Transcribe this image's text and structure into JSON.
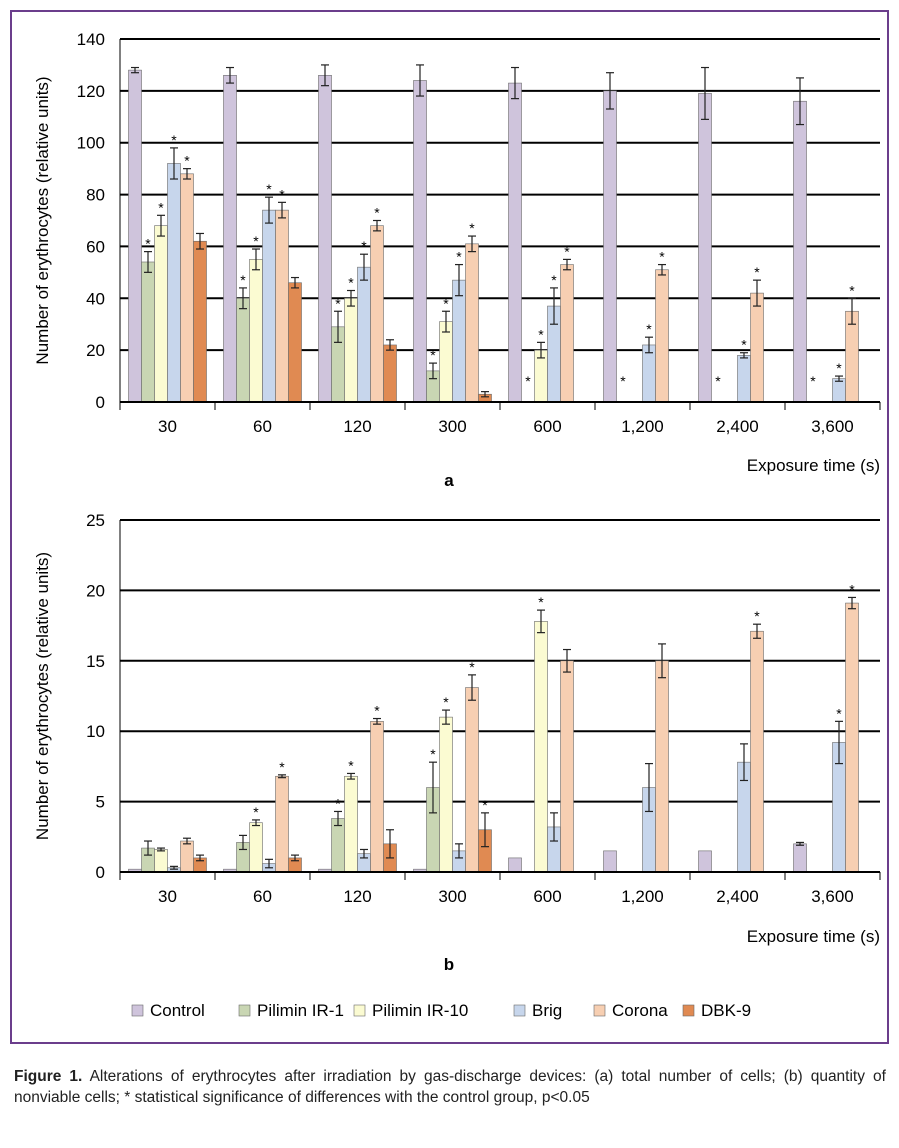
{
  "colors": {
    "Control": "#cfc4dc",
    "Pilimin IR-1": "#c9d6b3",
    "Pilimin IR-10": "#fbfbd2",
    "Brig": "#c7d6ec",
    "Corona": "#f7cfb2",
    "DBK-9": "#e08a52",
    "frame": "#6b3d8c"
  },
  "legend": [
    "Control",
    "Pilimin IR-1",
    "Pilimin IR-10",
    "Brig",
    "Corona",
    "DBK-9"
  ],
  "caption": {
    "label": "Figure 1.",
    "text": " Alterations of erythrocytes after irradiation by gas-discharge devices: (a) total number of cells; (b) quantity of nonviable cells; * statistical significance of differences with the control group, p<0.05"
  },
  "chart_data": [
    {
      "type": "bar",
      "panel_label": "a",
      "ylabel": "Number of erythrocytes (relative units)",
      "xlabel": "Exposure time (s)",
      "ylim": [
        0,
        140
      ],
      "yticks": [
        0,
        20,
        40,
        60,
        80,
        100,
        120,
        140
      ],
      "grid": true,
      "categories": [
        "30",
        "60",
        "120",
        "300",
        "600",
        "1,200",
        "2,400",
        "3,600"
      ],
      "series": [
        {
          "name": "Control",
          "values": [
            128,
            126,
            126,
            124,
            123,
            120,
            119,
            116
          ],
          "errors": [
            1,
            3,
            4,
            6,
            6,
            7,
            10,
            9
          ],
          "stars": [
            false,
            false,
            false,
            false,
            false,
            false,
            false,
            false
          ]
        },
        {
          "name": "Pilimin IR-1",
          "values": [
            54,
            40,
            29,
            12,
            0,
            0,
            0,
            0
          ],
          "errors": [
            4,
            4,
            6,
            3,
            0,
            0,
            0,
            0
          ],
          "stars": [
            true,
            true,
            true,
            true,
            true,
            true,
            true,
            true
          ]
        },
        {
          "name": "Pilimin IR-10",
          "values": [
            68,
            55,
            40,
            31,
            20,
            0,
            0,
            0
          ],
          "errors": [
            4,
            4,
            3,
            4,
            3,
            0,
            0,
            0
          ],
          "stars": [
            true,
            true,
            true,
            true,
            true,
            false,
            false,
            false
          ]
        },
        {
          "name": "Brig",
          "values": [
            92,
            74,
            52,
            47,
            37,
            22,
            18,
            9
          ],
          "errors": [
            6,
            5,
            5,
            6,
            7,
            3,
            1,
            1
          ],
          "stars": [
            true,
            true,
            true,
            true,
            true,
            true,
            true,
            true
          ]
        },
        {
          "name": "Corona",
          "values": [
            88,
            74,
            68,
            61,
            53,
            51,
            42,
            35
          ],
          "errors": [
            2,
            3,
            2,
            3,
            2,
            2,
            5,
            5
          ],
          "stars": [
            true,
            true,
            true,
            true,
            true,
            true,
            true,
            true
          ]
        },
        {
          "name": "DBK-9",
          "values": [
            62,
            46,
            22,
            3,
            0,
            0,
            0,
            0
          ],
          "errors": [
            3,
            2,
            2,
            1,
            0,
            0,
            0,
            0
          ],
          "stars": [
            false,
            false,
            false,
            false,
            false,
            false,
            false,
            false
          ]
        }
      ]
    },
    {
      "type": "bar",
      "panel_label": "b",
      "ylabel": "Number of erythrocytes (relative units)",
      "xlabel": "Exposure time (s)",
      "ylim": [
        0,
        25
      ],
      "yticks": [
        0,
        5,
        10,
        15,
        20,
        25
      ],
      "grid": true,
      "categories": [
        "30",
        "60",
        "120",
        "300",
        "600",
        "1,200",
        "2,400",
        "3,600"
      ],
      "series": [
        {
          "name": "Control",
          "values": [
            0.2,
            0.2,
            0.2,
            0.2,
            1.0,
            1.5,
            1.5,
            2.0
          ],
          "errors": [
            0,
            0,
            0,
            0,
            0,
            0,
            0,
            0.1
          ],
          "stars": [
            false,
            false,
            false,
            false,
            false,
            false,
            false,
            false
          ]
        },
        {
          "name": "Pilimin IR-1",
          "values": [
            1.7,
            2.1,
            3.8,
            6.0,
            0,
            0,
            0,
            0
          ],
          "errors": [
            0.5,
            0.5,
            0.5,
            1.8,
            0,
            0,
            0,
            0
          ],
          "stars": [
            false,
            false,
            true,
            true,
            false,
            false,
            false,
            false
          ]
        },
        {
          "name": "Pilimin IR-10",
          "values": [
            1.6,
            3.5,
            6.8,
            11.0,
            17.8,
            0,
            0,
            0
          ],
          "errors": [
            0.1,
            0.2,
            0.2,
            0.5,
            0.8,
            0,
            0,
            0
          ],
          "stars": [
            false,
            true,
            true,
            true,
            true,
            false,
            false,
            false
          ]
        },
        {
          "name": "Brig",
          "values": [
            0.3,
            0.6,
            1.3,
            1.5,
            3.2,
            6.0,
            7.8,
            9.2
          ],
          "errors": [
            0.1,
            0.3,
            0.3,
            0.5,
            1.0,
            1.7,
            1.3,
            1.5
          ],
          "stars": [
            false,
            false,
            false,
            false,
            false,
            false,
            false,
            true
          ]
        },
        {
          "name": "Corona",
          "values": [
            2.2,
            6.8,
            10.7,
            13.1,
            15.0,
            15.0,
            17.1,
            19.1
          ],
          "errors": [
            0.2,
            0.1,
            0.2,
            0.9,
            0.8,
            1.2,
            0.5,
            0.4
          ],
          "stars": [
            false,
            true,
            true,
            true,
            false,
            false,
            true,
            true
          ]
        },
        {
          "name": "DBK-9",
          "values": [
            1.0,
            1.0,
            2.0,
            3.0,
            0,
            0,
            0,
            0
          ],
          "errors": [
            0.2,
            0.2,
            1.0,
            1.2,
            0,
            0,
            0,
            0
          ],
          "stars": [
            false,
            false,
            false,
            true,
            false,
            false,
            false,
            false
          ]
        }
      ]
    }
  ]
}
